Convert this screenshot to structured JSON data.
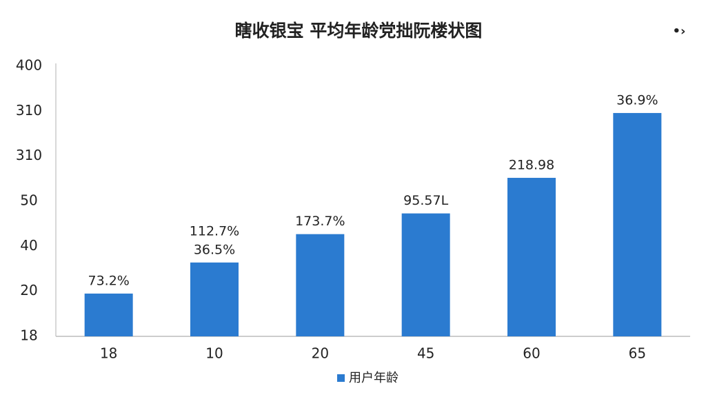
{
  "chart_data": {
    "type": "bar",
    "title": "瞎收银宝  平均年龄党拙阮楼状图",
    "categories": [
      "18",
      "10",
      "20",
      "45",
      "60",
      "65"
    ],
    "values": [
      0.95,
      1.64,
      2.27,
      2.73,
      3.52,
      4.96
    ],
    "data_labels": [
      [
        "73.2%"
      ],
      [
        "112.7%",
        "36.5%"
      ],
      [
        "173.7%"
      ],
      [
        "95.57L"
      ],
      [
        "218.98"
      ],
      [
        "36.9%"
      ]
    ],
    "ytick_labels": [
      "18",
      "20",
      "40",
      "50",
      "310",
      "310",
      "400"
    ],
    "ylim": [
      0,
      6
    ],
    "color": "#2b7bd0",
    "legend": {
      "name": "用户年龄",
      "position": "bottom"
    }
  }
}
